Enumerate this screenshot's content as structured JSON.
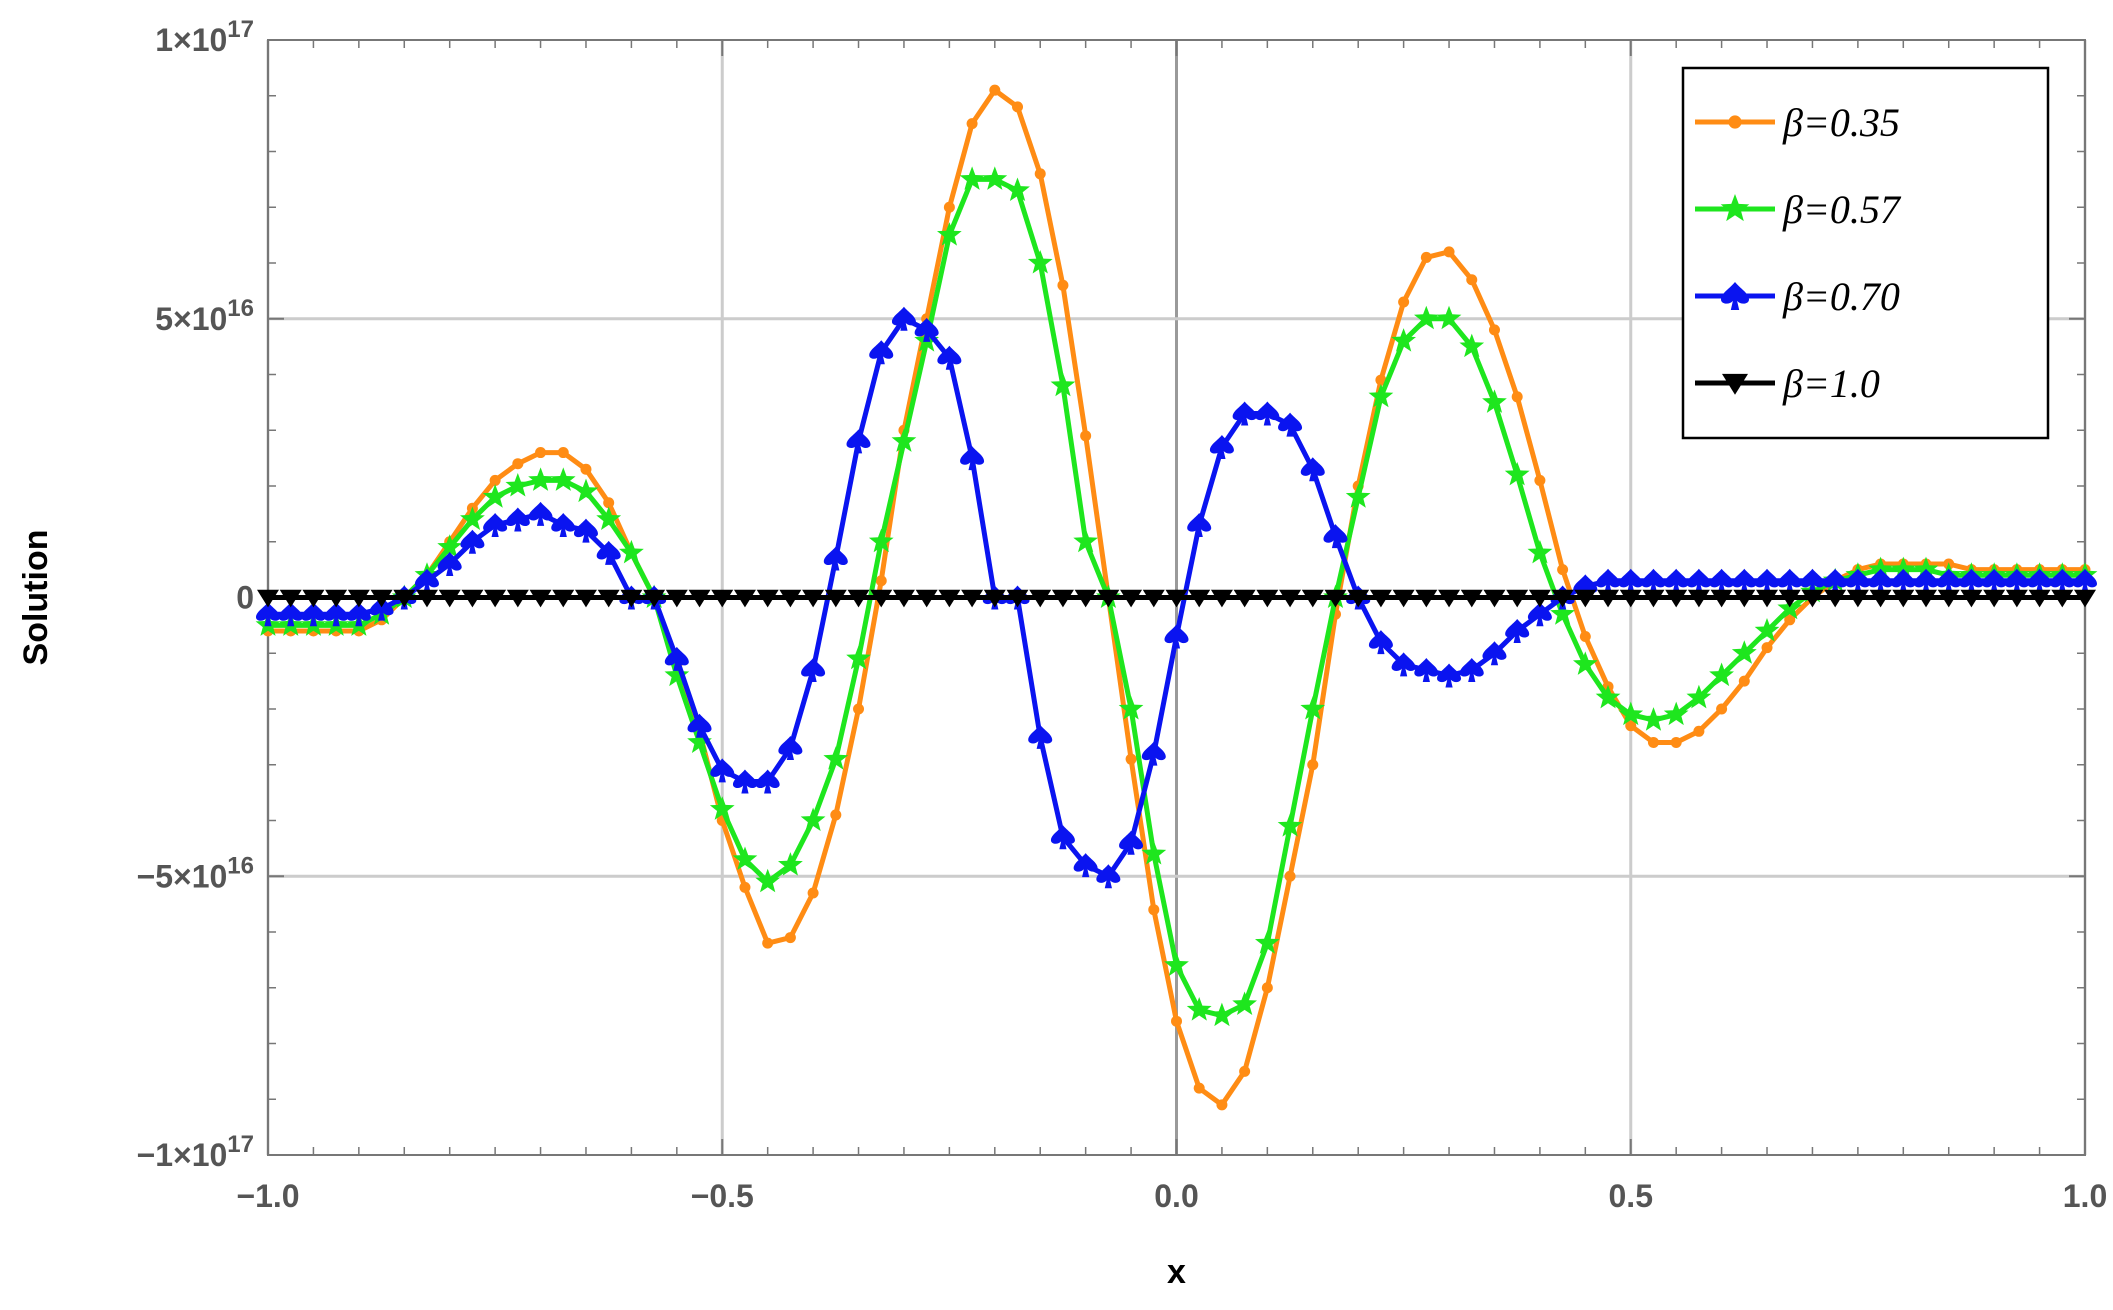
{
  "chart_data": {
    "type": "line",
    "xlabel": "x",
    "ylabel": "Solution",
    "xlim": [
      -1.0,
      1.0
    ],
    "ylim": [
      -1e+17,
      1e+17
    ],
    "x_ticks": [
      {
        "value": -1.0,
        "label": "−1.0"
      },
      {
        "value": -0.5,
        "label": "−0.5"
      },
      {
        "value": 0.0,
        "label": "0.0"
      },
      {
        "value": 0.5,
        "label": "0.5"
      },
      {
        "value": 1.0,
        "label": "1.0"
      }
    ],
    "y_ticks": [
      {
        "value": 1e+17,
        "mant": "1",
        "exp": "17",
        "sign": ""
      },
      {
        "value": 5e+16,
        "mant": "5",
        "exp": "16",
        "sign": ""
      },
      {
        "value": 0,
        "plain": "0"
      },
      {
        "value": -5e+16,
        "mant": "5",
        "exp": "16",
        "sign": "−"
      },
      {
        "value": -1e+17,
        "mant": "1",
        "exp": "17",
        "sign": "−"
      }
    ],
    "grid": true,
    "legend_position": "top-right",
    "sampling": {
      "x_start": -1.0,
      "x_step": 0.025
    },
    "series": [
      {
        "name": "β=0.35",
        "color": "#ff8c14",
        "marker": "circle",
        "values": [
          -0.6,
          -0.6,
          -0.6,
          -0.6,
          -0.6,
          -0.4,
          0.0,
          0.4,
          1.0,
          1.6,
          2.1,
          2.4,
          2.6,
          2.6,
          2.3,
          1.7,
          0.8,
          0.0,
          -1.2,
          -2.4,
          -4.0,
          -5.2,
          -6.2,
          -6.1,
          -5.3,
          -3.9,
          -2.0,
          0.3,
          3.0,
          5.0,
          7.0,
          8.5,
          9.1,
          8.8,
          7.6,
          5.6,
          2.9,
          0.0,
          -2.9,
          -5.6,
          -7.6,
          -8.8,
          -9.1,
          -8.5,
          -7.0,
          -5.0,
          -3.0,
          -0.3,
          2.0,
          3.9,
          5.3,
          6.1,
          6.2,
          5.7,
          4.8,
          3.6,
          2.1,
          0.5,
          -0.7,
          -1.6,
          -2.3,
          -2.6,
          -2.6,
          -2.4,
          -2.0,
          -1.5,
          -0.9,
          -0.4,
          0.0,
          0.3,
          0.5,
          0.6,
          0.6,
          0.6,
          0.6,
          0.5,
          0.5,
          0.5,
          0.5,
          0.5,
          0.5
        ]
      },
      {
        "name": "β=0.57",
        "color": "#1ee61e",
        "marker": "star",
        "values": [
          -0.5,
          -0.5,
          -0.5,
          -0.5,
          -0.5,
          -0.3,
          0.0,
          0.4,
          0.9,
          1.4,
          1.8,
          2.0,
          2.1,
          2.1,
          1.9,
          1.4,
          0.8,
          0.0,
          -1.4,
          -2.6,
          -3.8,
          -4.7,
          -5.1,
          -4.8,
          -4.0,
          -2.9,
          -1.1,
          1.0,
          2.8,
          4.6,
          6.5,
          7.5,
          7.5,
          7.3,
          6.0,
          3.8,
          1.0,
          0.0,
          -2.0,
          -4.6,
          -6.6,
          -7.4,
          -7.5,
          -7.3,
          -6.2,
          -4.1,
          -2.0,
          0.0,
          1.8,
          3.6,
          4.6,
          5.0,
          5.0,
          4.5,
          3.5,
          2.2,
          0.8,
          -0.3,
          -1.2,
          -1.8,
          -2.1,
          -2.2,
          -2.1,
          -1.8,
          -1.4,
          -1.0,
          -0.6,
          -0.2,
          0.1,
          0.3,
          0.4,
          0.5,
          0.5,
          0.5,
          0.4,
          0.4,
          0.4,
          0.4,
          0.4,
          0.4,
          0.4
        ]
      },
      {
        "name": "β=0.70",
        "color": "#0a14f0",
        "marker": "spade",
        "values": [
          -0.3,
          -0.3,
          -0.3,
          -0.3,
          -0.3,
          -0.2,
          0.0,
          0.3,
          0.6,
          1.0,
          1.3,
          1.4,
          1.5,
          1.3,
          1.2,
          0.8,
          0.0,
          0.0,
          -1.1,
          -2.3,
          -3.1,
          -3.3,
          -3.3,
          -2.7,
          -1.3,
          0.7,
          2.8,
          4.4,
          5.0,
          4.8,
          4.3,
          2.5,
          0.0,
          0.0,
          -2.5,
          -4.3,
          -4.8,
          -5.0,
          -4.4,
          -2.8,
          -0.7,
          1.3,
          2.7,
          3.3,
          3.3,
          3.1,
          2.3,
          1.1,
          0.0,
          -0.8,
          -1.2,
          -1.3,
          -1.4,
          -1.3,
          -1.0,
          -0.6,
          -0.3,
          0.0,
          0.2,
          0.3,
          0.3,
          0.3,
          0.3,
          0.3,
          0.3,
          0.3,
          0.3,
          0.3,
          0.3,
          0.3,
          0.3,
          0.3,
          0.3,
          0.3,
          0.3,
          0.3,
          0.3,
          0.3,
          0.3,
          0.3,
          0.3
        ]
      },
      {
        "name": "β=1.0",
        "color": "#000000",
        "marker": "triangle-down",
        "values": [
          0,
          0,
          0,
          0,
          0,
          0,
          0,
          0,
          0,
          0,
          0,
          0,
          0,
          0,
          0,
          0,
          0,
          0,
          0,
          0,
          0,
          0,
          0,
          0,
          0,
          0,
          0,
          0,
          0,
          0,
          0,
          0,
          0,
          0,
          0,
          0,
          0,
          0,
          0,
          0,
          0,
          0,
          0,
          0,
          0,
          0,
          0,
          0,
          0,
          0,
          0,
          0,
          0,
          0,
          0,
          0,
          0,
          0,
          0,
          0,
          0,
          0,
          0,
          0,
          0,
          0,
          0,
          0,
          0,
          0,
          0,
          0,
          0,
          0,
          0,
          0,
          0,
          0,
          0,
          0,
          0
        ]
      }
    ],
    "value_scale_note": "values in units of 1e16"
  }
}
